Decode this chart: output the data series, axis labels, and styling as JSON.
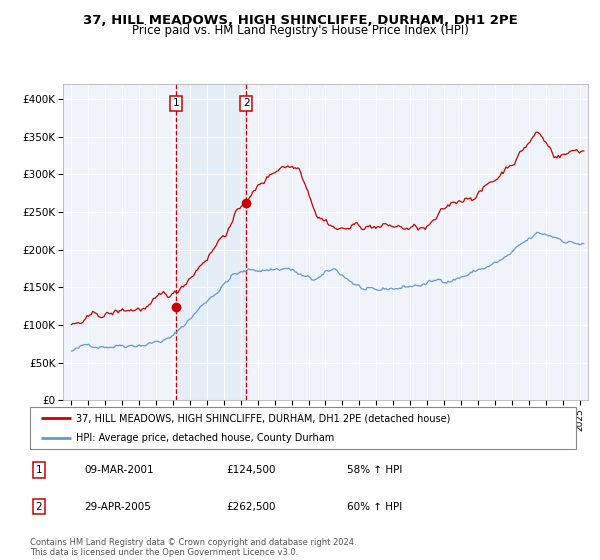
{
  "title": "37, HILL MEADOWS, HIGH SHINCLIFFE, DURHAM, DH1 2PE",
  "subtitle": "Price paid vs. HM Land Registry's House Price Index (HPI)",
  "title_fontsize": 9.5,
  "subtitle_fontsize": 8.5,
  "legend_line1": "37, HILL MEADOWS, HIGH SHINCLIFFE, DURHAM, DH1 2PE (detached house)",
  "legend_line2": "HPI: Average price, detached house, County Durham",
  "red_color": "#cc0000",
  "blue_color": "#6699cc",
  "footnote": "Contains HM Land Registry data © Crown copyright and database right 2024.\nThis data is licensed under the Open Government Licence v3.0.",
  "sale1_date": "09-MAR-2001",
  "sale1_price": 124500,
  "sale1_label": "1",
  "sale1_x": 2001.19,
  "sale2_date": "29-APR-2005",
  "sale2_price": 262500,
  "sale2_label": "2",
  "sale2_x": 2005.33,
  "sale1_pct": "58% ↑ HPI",
  "sale2_pct": "60% ↑ HPI",
  "ylim": [
    0,
    420000
  ],
  "xlim_start": 1994.5,
  "xlim_end": 2025.5,
  "background_color": "#ffffff",
  "plot_bg_color": "#f0f4fa",
  "grid_color": "#ffffff"
}
